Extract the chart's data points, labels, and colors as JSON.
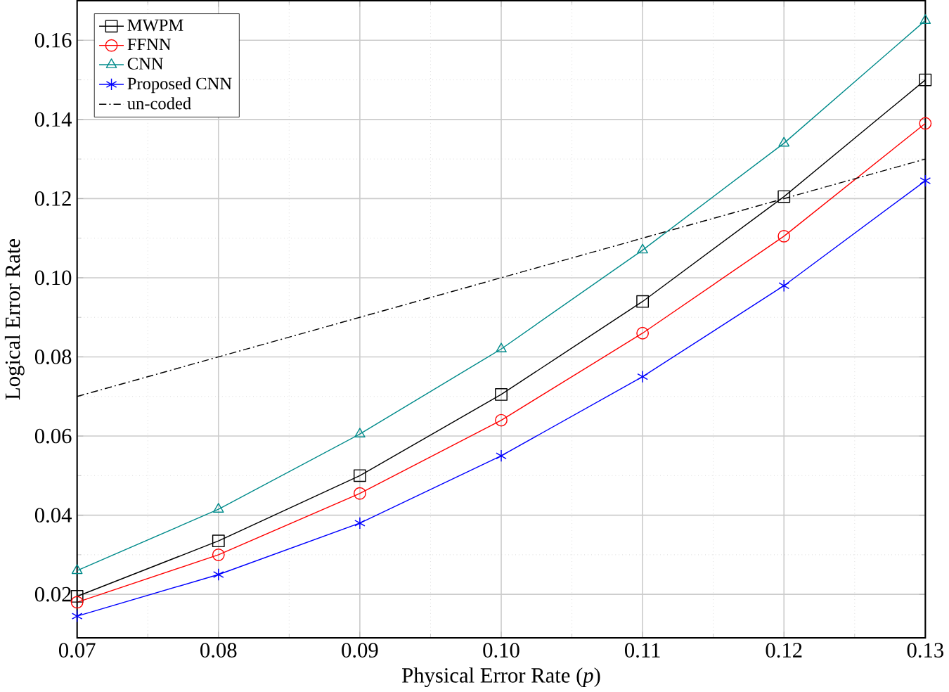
{
  "chart_data": {
    "type": "line",
    "xlabel": "Physical Error Rate (*p*)",
    "ylabel": "Logical Error Rate",
    "x": [
      0.07,
      0.08,
      0.09,
      0.1,
      0.11,
      0.12,
      0.13
    ],
    "series": [
      {
        "name": "MWPM",
        "color": "#000000",
        "marker": "square",
        "values": [
          0.0195,
          0.0335,
          0.05,
          0.0705,
          0.094,
          0.1205,
          0.15
        ]
      },
      {
        "name": "FFNN",
        "color": "#ff0000",
        "marker": "circle",
        "values": [
          0.018,
          0.03,
          0.0455,
          0.064,
          0.086,
          0.1105,
          0.139
        ]
      },
      {
        "name": "CNN",
        "color": "#008b8b",
        "marker": "triangle",
        "values": [
          0.026,
          0.0415,
          0.0605,
          0.082,
          0.107,
          0.134,
          0.165
        ]
      },
      {
        "name": "Proposed CNN",
        "color": "#0000ff",
        "marker": "cross",
        "values": [
          0.0145,
          0.025,
          0.038,
          0.055,
          0.075,
          0.098,
          0.1245
        ]
      },
      {
        "name": "un-coded",
        "color": "#000000",
        "marker": "none",
        "line_style": "dashed",
        "x": [
          0.07,
          0.13
        ],
        "values": [
          0.07,
          0.13
        ]
      }
    ],
    "xlim": [
      0.07,
      0.13
    ],
    "ylim": [
      0.009,
      0.17
    ],
    "xticks": [
      0.07,
      0.08,
      0.09,
      {
        "value": 0.1,
        "label": "0.10"
      },
      0.11,
      0.12,
      0.13
    ],
    "yticks": [
      0.02,
      0.04,
      0.06,
      0.08,
      {
        "value": 0.1,
        "label": "0.10"
      },
      0.12,
      0.14,
      0.16
    ],
    "grid": true,
    "legend": "top left"
  }
}
